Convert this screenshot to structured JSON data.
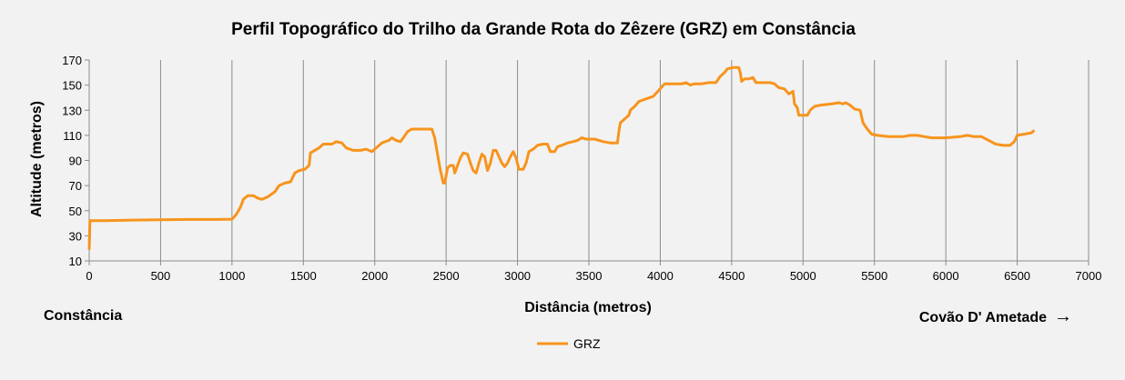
{
  "chart_data": {
    "type": "line",
    "title": "Perfil Topográfico do Trilho da Grande Rota do Zêzere (GRZ) em Constância",
    "xlabel": "Distância (metros)",
    "ylabel": "Altitude (metros)",
    "xlim": [
      0,
      7000
    ],
    "ylim": [
      10,
      170
    ],
    "xticks": [
      0,
      500,
      1000,
      1500,
      2000,
      2500,
      3000,
      3500,
      4000,
      4500,
      5000,
      5500,
      6000,
      6500,
      7000
    ],
    "yticks": [
      10,
      30,
      50,
      70,
      90,
      110,
      130,
      150,
      170
    ],
    "grid": "vertical",
    "legend": "bottom",
    "start_label": "Constância",
    "end_label": "Covão D' Ametade",
    "end_arrow": "→",
    "color": "#f7941d",
    "series": [
      {
        "name": "GRZ",
        "points": [
          [
            0,
            19
          ],
          [
            5,
            42
          ],
          [
            100,
            42
          ],
          [
            300,
            42.5
          ],
          [
            500,
            42.7
          ],
          [
            700,
            43
          ],
          [
            900,
            43
          ],
          [
            1000,
            43.2
          ],
          [
            1030,
            47
          ],
          [
            1060,
            53
          ],
          [
            1080,
            59
          ],
          [
            1110,
            62
          ],
          [
            1150,
            62
          ],
          [
            1180,
            60
          ],
          [
            1210,
            59
          ],
          [
            1250,
            61
          ],
          [
            1300,
            65
          ],
          [
            1330,
            70
          ],
          [
            1370,
            72
          ],
          [
            1410,
            73
          ],
          [
            1440,
            80
          ],
          [
            1470,
            82
          ],
          [
            1510,
            83
          ],
          [
            1540,
            86
          ],
          [
            1550,
            96
          ],
          [
            1580,
            98
          ],
          [
            1610,
            100
          ],
          [
            1640,
            103
          ],
          [
            1700,
            103
          ],
          [
            1730,
            105
          ],
          [
            1770,
            104
          ],
          [
            1800,
            100
          ],
          [
            1850,
            98
          ],
          [
            1900,
            98
          ],
          [
            1940,
            99
          ],
          [
            1980,
            97
          ],
          [
            2010,
            100
          ],
          [
            2050,
            104
          ],
          [
            2100,
            106
          ],
          [
            2120,
            108
          ],
          [
            2150,
            106
          ],
          [
            2180,
            105
          ],
          [
            2200,
            108
          ],
          [
            2230,
            113
          ],
          [
            2260,
            115
          ],
          [
            2300,
            115
          ],
          [
            2350,
            115
          ],
          [
            2400,
            115
          ],
          [
            2420,
            108
          ],
          [
            2440,
            95
          ],
          [
            2460,
            82
          ],
          [
            2480,
            72
          ],
          [
            2490,
            72
          ],
          [
            2510,
            84
          ],
          [
            2530,
            86
          ],
          [
            2550,
            86
          ],
          [
            2560,
            80
          ],
          [
            2580,
            86
          ],
          [
            2600,
            92
          ],
          [
            2620,
            96
          ],
          [
            2650,
            95
          ],
          [
            2670,
            88
          ],
          [
            2690,
            82
          ],
          [
            2710,
            80
          ],
          [
            2730,
            88
          ],
          [
            2750,
            95
          ],
          [
            2770,
            93
          ],
          [
            2790,
            82
          ],
          [
            2810,
            88
          ],
          [
            2830,
            98
          ],
          [
            2850,
            98
          ],
          [
            2870,
            93
          ],
          [
            2890,
            88
          ],
          [
            2910,
            85
          ],
          [
            2930,
            88
          ],
          [
            2950,
            93
          ],
          [
            2970,
            97
          ],
          [
            2990,
            92
          ],
          [
            3010,
            83
          ],
          [
            3040,
            83
          ],
          [
            3060,
            88
          ],
          [
            3080,
            97
          ],
          [
            3110,
            99
          ],
          [
            3140,
            102
          ],
          [
            3180,
            103
          ],
          [
            3210,
            103
          ],
          [
            3230,
            97
          ],
          [
            3260,
            97
          ],
          [
            3280,
            101
          ],
          [
            3310,
            102
          ],
          [
            3350,
            104
          ],
          [
            3390,
            105
          ],
          [
            3420,
            106
          ],
          [
            3450,
            108
          ],
          [
            3480,
            107
          ],
          [
            3510,
            107
          ],
          [
            3540,
            107
          ],
          [
            3570,
            106
          ],
          [
            3600,
            105
          ],
          [
            3650,
            104
          ],
          [
            3700,
            104
          ],
          [
            3710,
            113
          ],
          [
            3720,
            120
          ],
          [
            3760,
            124
          ],
          [
            3780,
            126
          ],
          [
            3790,
            130
          ],
          [
            3820,
            133
          ],
          [
            3850,
            137
          ],
          [
            3900,
            139
          ],
          [
            3950,
            141
          ],
          [
            3990,
            146
          ],
          [
            4030,
            151
          ],
          [
            4100,
            151
          ],
          [
            4150,
            151
          ],
          [
            4180,
            152
          ],
          [
            4210,
            150
          ],
          [
            4240,
            151
          ],
          [
            4290,
            151
          ],
          [
            4340,
            152
          ],
          [
            4390,
            152
          ],
          [
            4420,
            157
          ],
          [
            4450,
            160
          ],
          [
            4470,
            163
          ],
          [
            4510,
            164
          ],
          [
            4550,
            164
          ],
          [
            4560,
            160
          ],
          [
            4570,
            153
          ],
          [
            4590,
            155
          ],
          [
            4620,
            155
          ],
          [
            4650,
            156
          ],
          [
            4670,
            152
          ],
          [
            4720,
            152
          ],
          [
            4770,
            152
          ],
          [
            4800,
            151
          ],
          [
            4830,
            148
          ],
          [
            4870,
            147
          ],
          [
            4900,
            143
          ],
          [
            4930,
            145
          ],
          [
            4940,
            135
          ],
          [
            4960,
            132
          ],
          [
            4970,
            126
          ],
          [
            5000,
            126
          ],
          [
            5030,
            126
          ],
          [
            5050,
            130
          ],
          [
            5080,
            133
          ],
          [
            5120,
            134
          ],
          [
            5200,
            135
          ],
          [
            5250,
            136
          ],
          [
            5280,
            135
          ],
          [
            5300,
            136
          ],
          [
            5330,
            134
          ],
          [
            5360,
            131
          ],
          [
            5400,
            130
          ],
          [
            5420,
            120
          ],
          [
            5450,
            115
          ],
          [
            5480,
            111
          ],
          [
            5520,
            110
          ],
          [
            5600,
            109
          ],
          [
            5700,
            109
          ],
          [
            5750,
            110
          ],
          [
            5800,
            110
          ],
          [
            5850,
            109
          ],
          [
            5900,
            108
          ],
          [
            6000,
            108
          ],
          [
            6100,
            109
          ],
          [
            6150,
            110
          ],
          [
            6200,
            109
          ],
          [
            6250,
            109
          ],
          [
            6300,
            106
          ],
          [
            6350,
            103
          ],
          [
            6400,
            102
          ],
          [
            6450,
            102
          ],
          [
            6480,
            105
          ],
          [
            6500,
            110
          ],
          [
            6550,
            111
          ],
          [
            6600,
            112
          ],
          [
            6620,
            114
          ]
        ]
      }
    ]
  }
}
